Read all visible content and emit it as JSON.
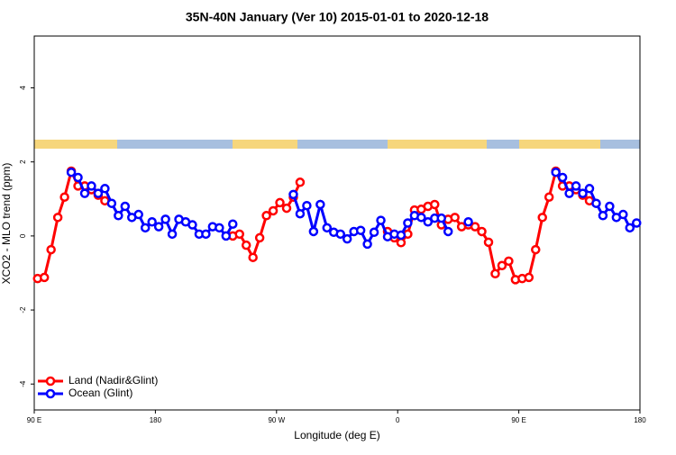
{
  "chart_data": {
    "type": "line",
    "title": "35N-40N January (Ver 10)   2015-01-01 to 2020-12-18",
    "x_label": "Longitude (deg E)",
    "y_label": "XCO2 - MLO trend (ppm)",
    "xlim": [
      90,
      540
    ],
    "ylim": [
      -4.7,
      5.4
    ],
    "xticks": [
      {
        "value": 90,
        "label": "90 E"
      },
      180,
      {
        "value": 270,
        "label": "90 W"
      },
      {
        "value": 360,
        "label": "0"
      },
      {
        "value": 450,
        "label": "90 E"
      },
      {
        "value": 540,
        "label": "180"
      }
    ],
    "yticks": [
      -4,
      -2,
      0,
      2,
      4
    ],
    "legend": "bottom-left",
    "x": [
      92.5,
      97.5,
      102.5,
      107.5,
      112.5,
      117.5,
      122.5,
      127.5,
      132.5,
      137.5,
      142.5,
      147.5,
      152.5,
      157.5,
      162.5,
      167.5,
      172.5,
      177.5,
      182.5,
      187.5,
      192.5,
      197.5,
      202.5,
      207.5,
      212.5,
      217.5,
      222.5,
      227.5,
      232.5,
      237.5,
      242.5,
      247.5,
      252.5,
      257.5,
      262.5,
      267.5,
      272.5,
      277.5,
      282.5,
      287.5,
      292.5,
      297.5,
      302.5,
      307.5,
      312.5,
      317.5,
      322.5,
      327.5,
      332.5,
      337.5,
      342.5,
      347.5,
      352.5,
      357.5,
      362.5,
      367.5,
      372.5,
      377.5,
      382.5,
      387.5,
      392.5,
      397.5,
      402.5,
      407.5,
      412.5,
      417.5,
      422.5,
      427.5,
      432.5,
      437.5,
      442.5,
      447.5,
      452.5,
      457.5,
      462.5,
      467.5,
      472.5,
      477.5,
      482.5,
      487.5,
      492.5,
      497.5,
      502.5,
      507.5,
      512.5,
      517.5,
      522.5,
      527.5,
      532.5,
      537.5
    ],
    "series": [
      {
        "name": "Land (Nadir&Glint)",
        "color": "#ff0000",
        "values": [
          -1.15,
          -1.12,
          -0.37,
          0.5,
          1.05,
          1.75,
          1.35,
          1.35,
          1.25,
          1.1,
          0.95,
          null,
          null,
          null,
          null,
          null,
          null,
          null,
          null,
          null,
          null,
          null,
          null,
          null,
          null,
          null,
          null,
          null,
          null,
          0.0,
          0.05,
          -0.25,
          -0.58,
          -0.05,
          0.55,
          0.68,
          0.9,
          0.75,
          1.05,
          1.45,
          null,
          null,
          null,
          null,
          null,
          null,
          null,
          null,
          null,
          null,
          null,
          null,
          0.12,
          -0.05,
          -0.18,
          0.05,
          0.7,
          0.72,
          0.8,
          0.85,
          0.3,
          0.45,
          0.5,
          0.25,
          0.3,
          0.25,
          0.12,
          -0.17,
          -1.02,
          -0.8,
          -0.68,
          -1.18,
          -1.15,
          -1.12,
          -0.37,
          0.5,
          1.05,
          1.75,
          1.35,
          1.35,
          1.25,
          1.1,
          0.95,
          null,
          null,
          null,
          null,
          null,
          null,
          null
        ]
      },
      {
        "name": "Ocean (Glint)",
        "color": "#0000ff",
        "values": [
          null,
          null,
          null,
          null,
          null,
          1.72,
          1.58,
          1.15,
          1.35,
          1.15,
          1.28,
          0.88,
          0.55,
          0.8,
          0.5,
          0.58,
          0.22,
          0.38,
          0.25,
          0.45,
          0.05,
          0.45,
          0.38,
          0.3,
          0.05,
          0.05,
          0.25,
          0.22,
          0.0,
          0.32,
          null,
          null,
          null,
          null,
          null,
          null,
          null,
          null,
          1.12,
          0.6,
          0.82,
          0.12,
          0.85,
          0.22,
          0.1,
          0.05,
          -0.08,
          0.12,
          0.15,
          -0.22,
          0.1,
          0.42,
          -0.02,
          0.05,
          0.02,
          0.35,
          0.55,
          0.5,
          0.38,
          0.48,
          0.48,
          0.12,
          null,
          null,
          0.38,
          null,
          null,
          null,
          null,
          null,
          null,
          null,
          null,
          null,
          null,
          null,
          null,
          1.72,
          1.58,
          1.15,
          1.35,
          1.15,
          1.28,
          0.88,
          0.55,
          0.8,
          0.5,
          0.58,
          0.22,
          0.35
        ]
      }
    ]
  }
}
